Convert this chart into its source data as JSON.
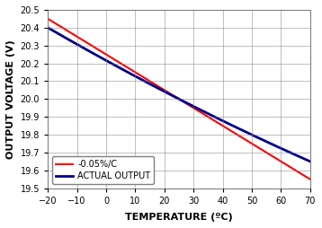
{
  "title": "",
  "xlabel": "TEMPERATURE (ºC)",
  "ylabel": "OUTPUT VOLTAGE (V)",
  "xlim": [
    -20,
    70
  ],
  "ylim": [
    19.5,
    20.5
  ],
  "xticks": [
    -20,
    -10,
    0,
    10,
    20,
    30,
    40,
    50,
    60,
    70
  ],
  "yticks": [
    19.5,
    19.6,
    19.7,
    19.8,
    19.9,
    20.0,
    20.1,
    20.2,
    20.3,
    20.4,
    20.5
  ],
  "ref_voltage": 20.0,
  "tc_pct_per_c": -0.05,
  "ref_temp": 25,
  "red_line_color": "#FF0000",
  "blue_line_color": "#00008B",
  "legend_labels": [
    "-0.05%/C",
    "ACTUAL OUTPUT"
  ],
  "background_color": "#FFFFFF",
  "grid_color": "#808080",
  "fig_border_color": "#808080"
}
